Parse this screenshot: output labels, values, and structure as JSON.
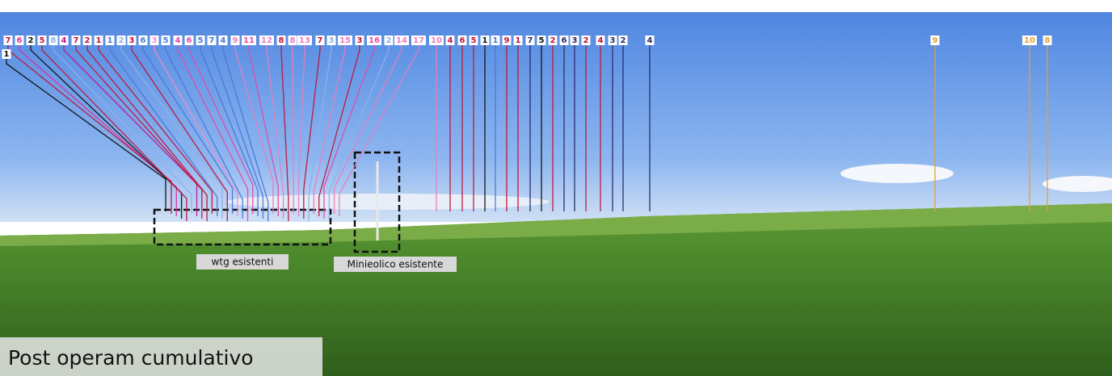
{
  "labels": [
    {
      "text": "7",
      "color": "#c0143c"
    },
    {
      "text": "6",
      "color": "#d6339a"
    },
    {
      "text": "2",
      "color": "#111111"
    },
    {
      "text": "5",
      "color": "#c0143c"
    },
    {
      "text": "8",
      "color": "#8fb0e8"
    },
    {
      "text": "4",
      "color": "#c01490"
    },
    {
      "text": "7",
      "color": "#c0143c"
    },
    {
      "text": "2",
      "color": "#c0143c"
    },
    {
      "text": "1",
      "color": "#c0143c"
    },
    {
      "text": "1",
      "color": "#4a78d8"
    },
    {
      "text": "2",
      "color": "#8fb0e8"
    },
    {
      "text": "3",
      "color": "#c0143c"
    },
    {
      "text": "6",
      "color": "#4a78d8"
    },
    {
      "text": "3",
      "color": "#f08cc8"
    },
    {
      "text": "5",
      "color": "#4a78d8"
    },
    {
      "text": "4",
      "color": "#e24aa8"
    },
    {
      "text": "6",
      "color": "#e24aa8"
    },
    {
      "text": "5",
      "color": "#4a78d8"
    },
    {
      "text": "7",
      "color": "#4a78d8"
    },
    {
      "text": "4",
      "color": "#4a78d8"
    },
    {
      "text": "9",
      "color": "#e87cc0"
    },
    {
      "text": "11",
      "color": "#e24aa8"
    },
    {
      "text": "12",
      "color": "#e87cc0"
    },
    {
      "text": "8",
      "color": "#c0143c"
    },
    {
      "text": "8",
      "color": "#e87cc0"
    },
    {
      "text": "13",
      "color": "#e87cc0"
    },
    {
      "text": "7",
      "color": "#c0143c"
    },
    {
      "text": "3",
      "color": "#8fb0e8"
    },
    {
      "text": "15",
      "color": "#e87cc0"
    },
    {
      "text": "3",
      "color": "#c0143c"
    },
    {
      "text": "16",
      "color": "#e24aa8"
    },
    {
      "text": "2",
      "color": "#8fb0e8"
    },
    {
      "text": "14",
      "color": "#e87cc0"
    },
    {
      "text": "17",
      "color": "#e87cc0"
    },
    {
      "text": "10",
      "color": "#e87cc0"
    },
    {
      "text": "4",
      "color": "#c0143c"
    },
    {
      "text": "6",
      "color": "#c0143c"
    },
    {
      "text": "5",
      "color": "#c0143c"
    },
    {
      "text": "1",
      "color": "#111111"
    },
    {
      "text": "1",
      "color": "#4a78d8"
    },
    {
      "text": "9",
      "color": "#c0143c"
    },
    {
      "text": "1",
      "color": "#c0143c"
    },
    {
      "text": "7",
      "color": "#2a2a6a"
    },
    {
      "text": "5",
      "color": "#111111"
    },
    {
      "text": "2",
      "color": "#c0143c"
    },
    {
      "text": "6",
      "color": "#2a2a6a"
    },
    {
      "text": "3",
      "color": "#2a2a6a"
    },
    {
      "text": "2",
      "color": "#c0143c"
    },
    {
      "text": "4",
      "color": "#c0143c"
    },
    {
      "text": "3",
      "color": "#2a2a6a"
    },
    {
      "text": "2",
      "color": "#2a2a6a"
    },
    {
      "text": "4",
      "color": "#2a2a6a"
    },
    {
      "text": "9",
      "color": "#e8a030"
    },
    {
      "text": "10",
      "color": "#e8a030"
    },
    {
      "text": "8",
      "color": "#e8a030"
    },
    {
      "text": "1",
      "color": "#111111"
    }
  ],
  "captions": {
    "existing_turbines": "wtg esistenti",
    "mini_wind": "Minieolico esistente",
    "title": "Post operam cumulativo"
  }
}
